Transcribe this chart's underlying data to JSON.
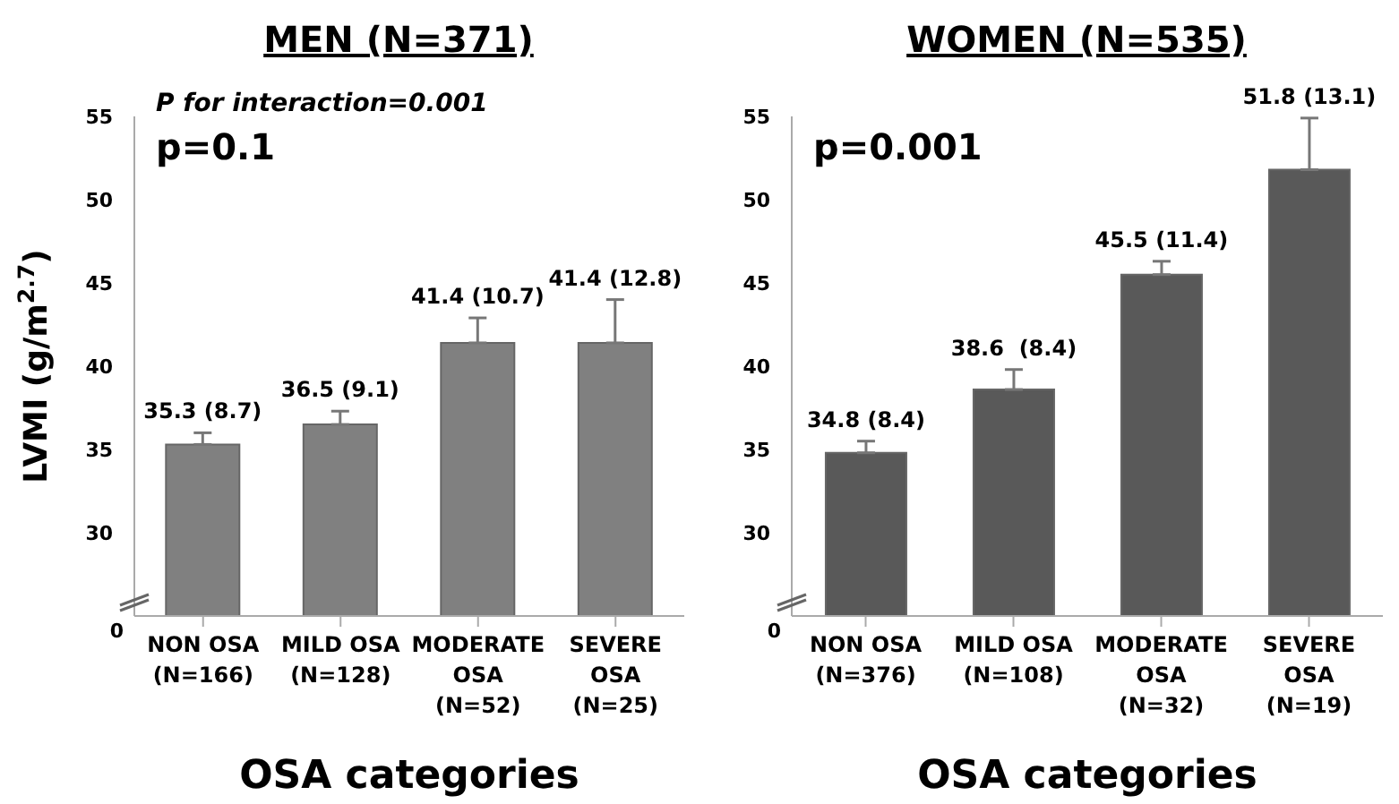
{
  "chart_data": [
    {
      "type": "bar",
      "title": "MEN (N=371)",
      "xlabel": "OSA categories",
      "ylabel": "LVMI (g/m$^{2.7}$)",
      "categories": [
        "NON OSA\n(N=166)",
        "MILD OSA\n(N=128)",
        "MODERATE\nOSA\n(N=52)",
        "SEVERE\nOSA\n(N=25)"
      ],
      "values": [
        35.3,
        36.5,
        41.4,
        41.4
      ],
      "color": "#808080",
      "errors": [
        [
          35.3,
          36.0
        ],
        [
          36.5,
          37.3
        ],
        [
          41.4,
          42.9
        ],
        [
          41.4,
          44.0
        ]
      ],
      "value_labels": [
        "35.3 (8.7)",
        "36.5 (9.1)",
        "41.4 (10.7)",
        "41.4 (12.8)"
      ],
      "ylim": [
        25,
        55
      ],
      "yticks": [
        30,
        35,
        40,
        45,
        50,
        55
      ],
      "annotations": [
        "0",
        "P for interaction=0.001",
        "p=0.1"
      ]
    },
    {
      "type": "bar",
      "title": "WOMEN (N=535)",
      "xlabel": "OSA categories",
      "categories": [
        "NON OSA\n(N=376)",
        "MILD OSA\n(N=108)",
        "MODERATE\nOSA\n(N=32)",
        "SEVERE\nOSA\n(N=19)"
      ],
      "values": [
        34.8,
        38.6,
        45.5,
        51.8
      ],
      "color": "#595959",
      "errors": [
        [
          34.8,
          35.5
        ],
        [
          38.6,
          39.8
        ],
        [
          45.5,
          46.3
        ],
        [
          51.8,
          54.9
        ]
      ],
      "value_labels": [
        "34.8 (8.4)",
        "38.6  (8.4)",
        "45.5 (11.4)",
        "51.8 (13.1)"
      ],
      "ylim": [
        25,
        55
      ],
      "yticks": [
        30,
        35,
        40,
        45,
        50,
        55
      ],
      "annotations": [
        "0",
        "p=0.001"
      ]
    }
  ]
}
